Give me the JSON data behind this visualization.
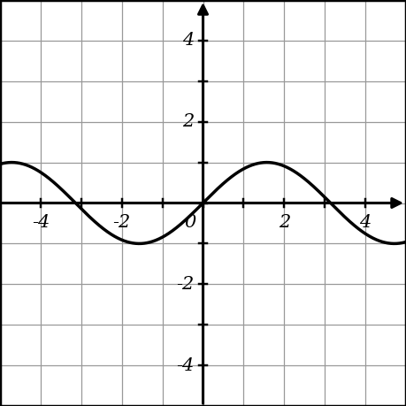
{
  "xlim": [
    -5.0,
    5.0
  ],
  "ylim": [
    -5.0,
    5.0
  ],
  "xticks": [
    -4,
    -3,
    -2,
    -1,
    0,
    1,
    2,
    3,
    4
  ],
  "yticks": [
    -4,
    -3,
    -2,
    -1,
    0,
    1,
    2,
    3,
    4
  ],
  "xtick_labels_show": [
    -4,
    -2,
    0,
    2,
    4
  ],
  "ytick_labels_show": [
    -4,
    -2,
    2,
    4
  ],
  "grid_color": "#999999",
  "grid_linewidth": 0.9,
  "axis_linewidth": 2.2,
  "wave_color": "#000000",
  "wave_linewidth": 2.5,
  "background_color": "#ffffff",
  "border_color": "#000000",
  "figsize": [
    4.59,
    4.59
  ],
  "dpi": 100,
  "tick_fontsize": 15,
  "arrow_scale": 18
}
